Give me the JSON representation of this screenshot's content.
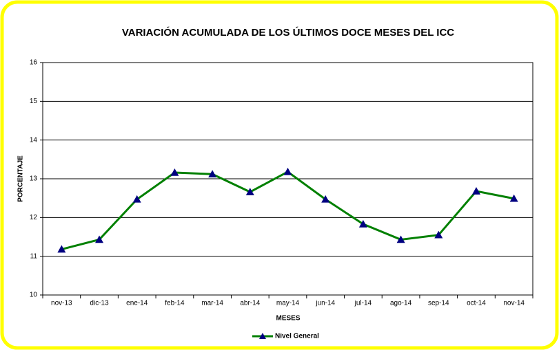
{
  "chart_data": {
    "type": "line",
    "title": "VARIACIÓN ACUMULADA DE LOS ÚLTIMOS DOCE MESES DEL ICC",
    "x_label": "MESES",
    "y_label": "PORCENTAJE",
    "categories": [
      "nov-13",
      "dic-13",
      "ene-14",
      "feb-14",
      "mar-14",
      "abr-14",
      "may-14",
      "jun-14",
      "jul-14",
      "ago-14",
      "sep-14",
      "oct-14",
      "nov-14"
    ],
    "series": [
      {
        "name": "Nivel General",
        "color": "#008000",
        "marker_color": "#000080",
        "values": [
          11.18,
          11.43,
          12.47,
          13.16,
          13.12,
          12.66,
          13.18,
          12.47,
          11.83,
          11.43,
          11.55,
          12.68,
          12.49
        ]
      }
    ],
    "ylim": [
      10,
      16
    ],
    "yticks": [
      10,
      11,
      12,
      13,
      14,
      15,
      16
    ],
    "grid": true,
    "legend": "bottom"
  }
}
